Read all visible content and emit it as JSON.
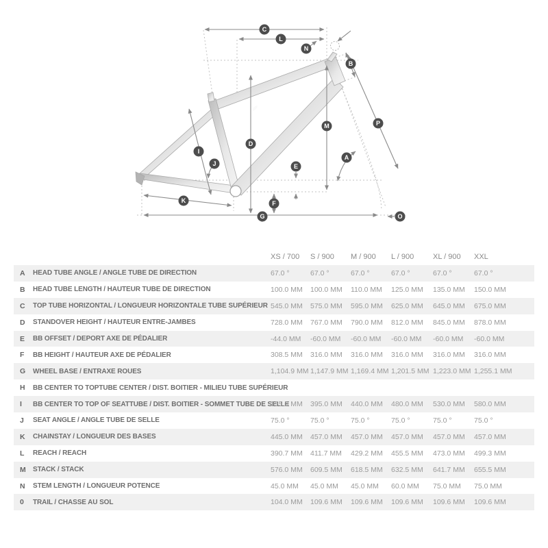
{
  "diagram": {
    "description": "Bike frame geometry technical drawing with dimension callouts",
    "labels": [
      "C",
      "L",
      "N",
      "B",
      "P",
      "M",
      "D",
      "I",
      "J",
      "A",
      "E",
      "F",
      "K",
      "G",
      "O"
    ],
    "colors": {
      "label_circle": "#4d4d4d",
      "dim_line": "#8a8a8a",
      "ref_line": "#c0c0c0",
      "frame_light": "#f2f2f2",
      "frame_dark": "#c3c3c3"
    }
  },
  "table": {
    "size_headers": [
      "XS / 700",
      "S / 900",
      "M / 900",
      "L / 900",
      "XL / 900",
      "XXL"
    ],
    "rows": [
      {
        "letter": "A",
        "label": "HEAD TUBE ANGLE / ANGLE TUBE DE DIRECTION",
        "values": [
          "67.0 °",
          "67.0 °",
          "67.0 °",
          "67.0 °",
          "67.0 °",
          "67.0 °"
        ]
      },
      {
        "letter": "B",
        "label": "HEAD TUBE LENGTH / HAUTEUR TUBE DE DIRECTION",
        "values": [
          "100.0 MM",
          "100.0 MM",
          "110.0 MM",
          "125.0 MM",
          "135.0 MM",
          "150.0 MM"
        ]
      },
      {
        "letter": "C",
        "label": "TOP TUBE HORIZONTAL / LONGUEUR HORIZONTALE TUBE SUPÉRIEUR",
        "values": [
          "545.0 MM",
          "575.0 MM",
          "595.0 MM",
          "625.0 MM",
          "645.0 MM",
          "675.0 MM"
        ]
      },
      {
        "letter": "D",
        "label": "STANDOVER HEIGHT / HAUTEUR ENTRE-JAMBES",
        "values": [
          "728.0 MM",
          "767.0 MM",
          "790.0 MM",
          "812.0 MM",
          "845.0 MM",
          "878.0 MM"
        ]
      },
      {
        "letter": "E",
        "label": "BB OFFSET / DEPORT AXE DE PÉDALIER",
        "values": [
          "-44.0 MM",
          "-60.0 MM",
          "-60.0 MM",
          "-60.0 MM",
          "-60.0 MM",
          "-60.0 MM"
        ]
      },
      {
        "letter": "F",
        "label": "BB HEIGHT / HAUTEUR AXE DE PÉDALIER",
        "values": [
          "308.5 MM",
          "316.0 MM",
          "316.0 MM",
          "316.0 MM",
          "316.0 MM",
          "316.0 MM"
        ]
      },
      {
        "letter": "G",
        "label": "WHEEL BASE / ENTRAXE ROUES",
        "values": [
          "1,104.9 MM",
          "1,147.9 MM",
          "1,169.4 MM",
          "1,201.5 MM",
          "1,223.0 MM",
          "1,255.1 MM"
        ]
      },
      {
        "letter": "H",
        "label": "BB CENTER TO TOPTUBE CENTER / DIST. BOITIER - MILIEU TUBE SUPÉRIEUR",
        "values": [
          "",
          "",
          "",
          "",
          "",
          ""
        ]
      },
      {
        "letter": "I",
        "label": "BB CENTER TO TOP OF SEATTUBE / DIST. BOITIER - SOMMET TUBE DE SELLE",
        "values": [
          "355.0 MM",
          "395.0 MM",
          "440.0 MM",
          "480.0 MM",
          "530.0 MM",
          "580.0 MM"
        ]
      },
      {
        "letter": "J",
        "label": "SEAT ANGLE / ANGLE TUBE DE SELLE",
        "values": [
          "75.0 °",
          "75.0 °",
          "75.0 °",
          "75.0 °",
          "75.0 °",
          "75.0 °"
        ]
      },
      {
        "letter": "K",
        "label": "CHAINSTAY / LONGUEUR DES BASES",
        "values": [
          "445.0 MM",
          "457.0 MM",
          "457.0 MM",
          "457.0 MM",
          "457.0 MM",
          "457.0 MM"
        ]
      },
      {
        "letter": "L",
        "label": "REACH / REACH",
        "values": [
          "390.7 MM",
          "411.7 MM",
          "429.2 MM",
          "455.5 MM",
          "473.0 MM",
          "499.3 MM"
        ]
      },
      {
        "letter": "M",
        "label": "STACK / STACK",
        "values": [
          "576.0 MM",
          "609.5 MM",
          "618.5 MM",
          "632.5 MM",
          "641.7 MM",
          "655.5 MM"
        ]
      },
      {
        "letter": "N",
        "label": "STEM LENGTH / LONGUEUR POTENCE",
        "values": [
          "45.0 MM",
          "45.0 MM",
          "45.0 MM",
          "60.0 MM",
          "75.0 MM",
          "75.0 MM"
        ]
      },
      {
        "letter": "0",
        "label": "TRAIL / CHASSE AU SOL",
        "values": [
          "104.0 MM",
          "109.6 MM",
          "109.6 MM",
          "109.6 MM",
          "109.6 MM",
          "109.6 MM"
        ]
      }
    ]
  }
}
